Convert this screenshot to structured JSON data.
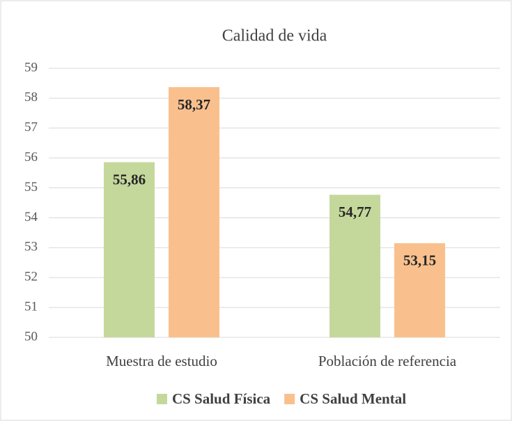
{
  "chart_data": {
    "type": "bar",
    "title": "Calidad de vida",
    "categories": [
      "Muestra de estudio",
      "Población de referencia"
    ],
    "series": [
      {
        "name": "CS Salud Física",
        "color": "#c5d89c",
        "values": [
          55.86,
          54.77
        ],
        "value_labels": [
          "55,86",
          "54,77"
        ]
      },
      {
        "name": "CS Salud Mental",
        "color": "#f9c08e",
        "values": [
          58.37,
          53.15
        ],
        "value_labels": [
          "58,37",
          "53,15"
        ]
      }
    ],
    "ylim": [
      50,
      59
    ],
    "yticks": [
      50,
      51,
      52,
      53,
      54,
      55,
      56,
      57,
      58,
      59
    ],
    "grid": true,
    "legend": "bottom"
  }
}
